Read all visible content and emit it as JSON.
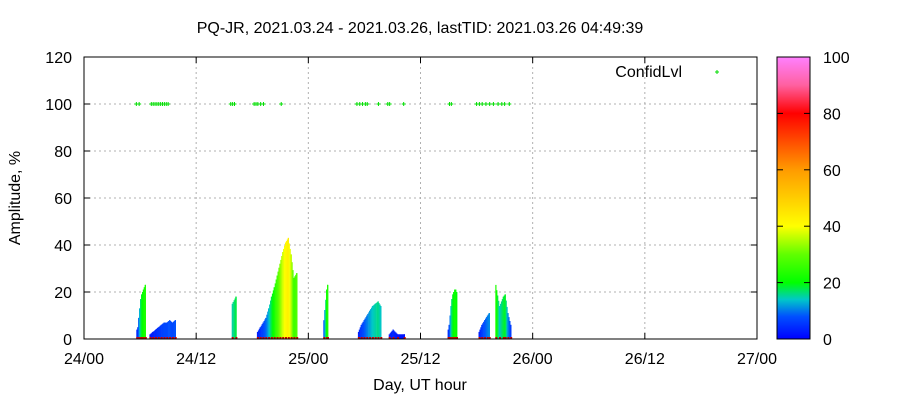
{
  "chart_data": {
    "type": "scatter",
    "title": "PQ-JR, 2021.03.24 - 2021.03.26, lastTID: 2021.03.26 04:49:39",
    "xlabel": "Day, UT hour",
    "ylabel": "Amplitude, %",
    "xlim": [
      0,
      72
    ],
    "ylim": [
      0,
      120
    ],
    "x_ticks": [
      {
        "value": 0,
        "label": "24/00"
      },
      {
        "value": 12,
        "label": "24/12"
      },
      {
        "value": 24,
        "label": "25/00"
      },
      {
        "value": 36,
        "label": "25/12"
      },
      {
        "value": 48,
        "label": "26/00"
      },
      {
        "value": 60,
        "label": "26/12"
      },
      {
        "value": 72,
        "label": "27/00"
      }
    ],
    "y_ticks": [
      0,
      20,
      40,
      60,
      80,
      100,
      120
    ],
    "grid": true,
    "legend": {
      "position": "top-right",
      "entries": [
        {
          "name": "ConfidLvl",
          "color": "#00dd00"
        }
      ]
    },
    "colorbar": {
      "min": 0,
      "max": 100,
      "ticks": [
        0,
        20,
        40,
        60,
        80,
        100
      ]
    },
    "confid_points_y": 100,
    "confid_x": [
      5.6,
      5.9,
      7.2,
      7.4,
      7.6,
      7.8,
      8.0,
      8.2,
      8.4,
      8.6,
      8.8,
      9.0,
      15.7,
      15.9,
      16.1,
      18.2,
      18.4,
      18.6,
      18.9,
      19.2,
      21.1,
      29.2,
      29.5,
      29.8,
      30.1,
      30.3,
      31.5,
      32.5,
      32.7,
      34.2,
      39.1,
      39.3,
      42.0,
      42.3,
      42.6,
      43.0,
      43.4,
      43.8,
      44.3,
      44.7,
      45.0,
      45.5
    ],
    "series": [
      {
        "name": "",
        "x": [
          5.6,
          5.7,
          5.8,
          5.9,
          6.0,
          6.1,
          6.2,
          6.3,
          6.4,
          6.5
        ],
        "y": [
          4,
          5,
          9,
          13,
          17,
          19,
          20,
          21,
          22,
          23
        ]
      },
      {
        "name": "",
        "x": [
          7.0,
          7.3,
          7.6,
          7.9,
          8.2,
          8.5,
          8.8,
          9.1,
          9.4,
          9.7
        ],
        "y": [
          2,
          3,
          4,
          5,
          6,
          7,
          7,
          8,
          7,
          8
        ]
      },
      {
        "name": "",
        "x": [
          15.8,
          16.2
        ],
        "y": [
          15,
          18
        ]
      },
      {
        "name": "",
        "x": [
          18.5,
          18.8,
          19.1,
          19.4,
          19.7,
          20.0,
          20.3,
          20.6,
          20.9,
          21.2,
          21.5,
          21.8,
          22.1,
          22.4,
          22.7
        ],
        "y": [
          3,
          5,
          7,
          9,
          13,
          18,
          22,
          27,
          32,
          37,
          41,
          43,
          36,
          26,
          28
        ]
      },
      {
        "name": "",
        "x": [
          25.6,
          25.9,
          26.0
        ],
        "y": [
          8,
          21,
          23
        ]
      },
      {
        "name": "",
        "x": [
          29.3,
          29.6,
          29.9,
          30.2,
          30.5,
          30.8,
          31.1,
          31.4,
          31.7
        ],
        "y": [
          3,
          6,
          8,
          10,
          12,
          14,
          15,
          16,
          14
        ]
      },
      {
        "name": "",
        "x": [
          32.6,
          33.0,
          33.5,
          34.2
        ],
        "y": [
          2,
          4,
          2,
          2
        ]
      },
      {
        "name": "",
        "x": [
          38.9,
          39.0,
          39.1,
          39.2,
          39.3,
          39.4,
          39.5,
          39.6,
          39.7,
          39.8
        ],
        "y": [
          4,
          6,
          10,
          14,
          17,
          19,
          20,
          21,
          21,
          20
        ]
      },
      {
        "name": "",
        "x": [
          42.2,
          42.5,
          42.8,
          43.1,
          43.3
        ],
        "y": [
          3,
          6,
          8,
          10,
          11
        ]
      },
      {
        "name": "",
        "x": [
          44.0,
          44.4,
          44.8,
          45.0,
          45.3,
          45.6
        ],
        "y": [
          23,
          14,
          18,
          19,
          11,
          6
        ]
      }
    ]
  }
}
